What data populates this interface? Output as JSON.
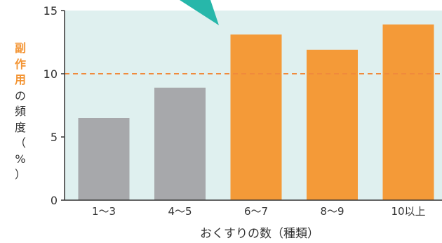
{
  "chart_data": {
    "type": "bar",
    "categories": [
      "1～3",
      "4～5",
      "6～7",
      "8～9",
      "10以上"
    ],
    "values": [
      6.5,
      8.9,
      13.1,
      11.9,
      13.9
    ],
    "bar_colors": [
      "#a7a8ab",
      "#a7a8ab",
      "#f49a38",
      "#f49a38",
      "#f49a38"
    ],
    "ylim": [
      0,
      15
    ],
    "yticks": [
      "0",
      "5",
      "10",
      "15"
    ],
    "xlabel": "おくすりの数（種類）",
    "ylabel": "副作用の頻度（%）",
    "ylabel_highlight": "副作用",
    "reference_line": {
      "value": 10,
      "style": "dashed",
      "color": "#f08a3c"
    },
    "plot_background": "#dff0ef",
    "callout_color": "#27b7aa"
  }
}
